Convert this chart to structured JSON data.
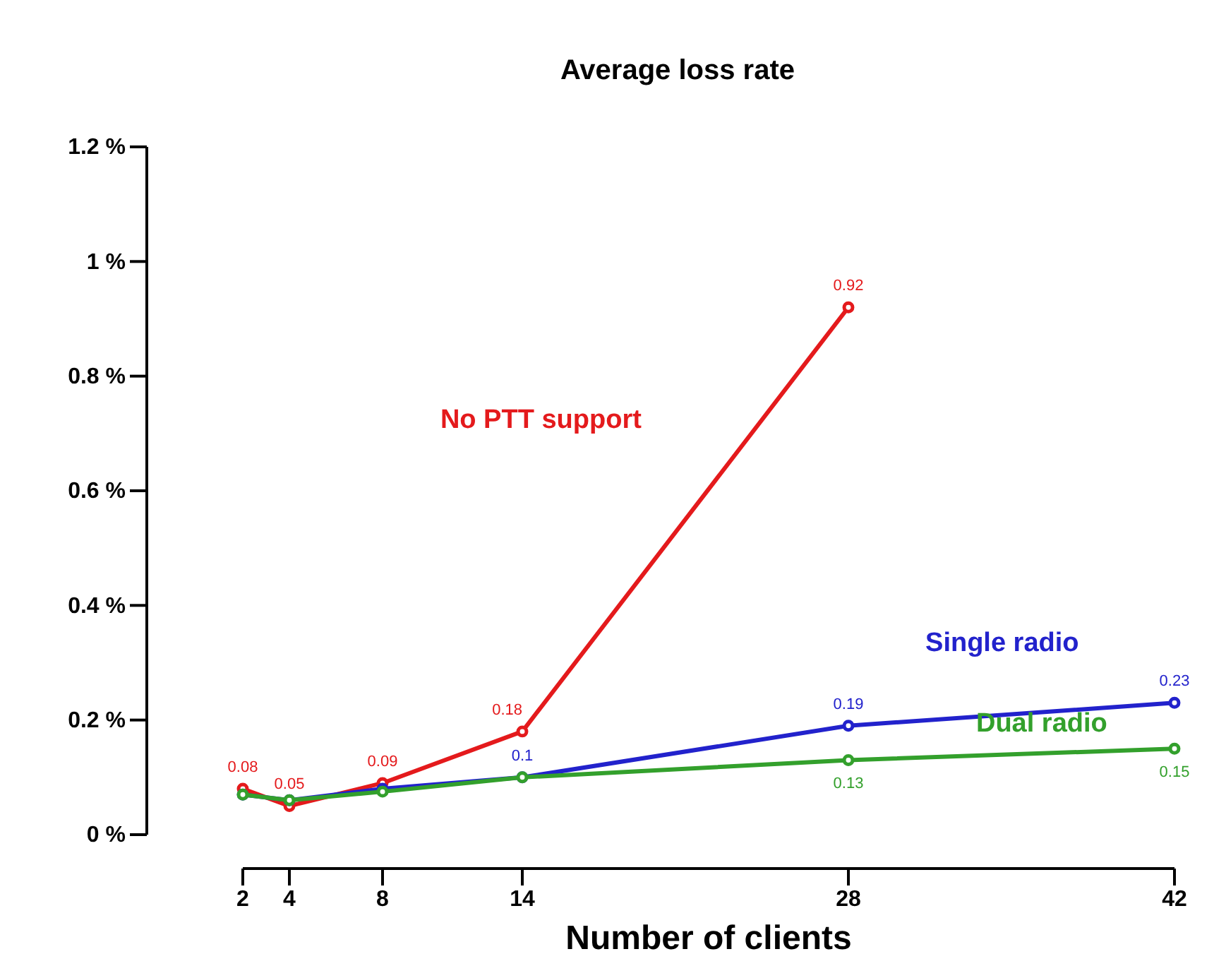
{
  "chart_data": {
    "type": "line",
    "title": "Average loss rate",
    "xlabel": "Number of clients",
    "x": [
      2,
      4,
      8,
      14,
      28,
      42
    ],
    "xlim": [
      2,
      42
    ],
    "xticks": [
      2,
      4,
      8,
      14,
      28,
      42
    ],
    "ylim": [
      0,
      1.2
    ],
    "yticks": [
      {
        "value": 0,
        "label": "0  %"
      },
      {
        "value": 0.2,
        "label": "0.2  %"
      },
      {
        "value": 0.4,
        "label": "0.4  %"
      },
      {
        "value": 0.6,
        "label": "0.6  %"
      },
      {
        "value": 0.8,
        "label": "0.8  %"
      },
      {
        "value": 1,
        "label": "1  %"
      },
      {
        "value": 1.2,
        "label": "1.2  %"
      }
    ],
    "marker": "circle",
    "line_style": "solid",
    "grid": false,
    "legend": false,
    "series": [
      {
        "name": "No PTT support",
        "color": "#e41a1c",
        "values": [
          0.08,
          0.05,
          0.09,
          0.18,
          0.92,
          null
        ],
        "value_labels": [
          "0.08",
          "0.05",
          "0.09",
          "0.18",
          "0.92",
          null
        ]
      },
      {
        "name": "Single radio",
        "color": "#2222cc",
        "values": [
          0.07,
          0.06,
          0.08,
          0.1,
          0.19,
          0.23
        ],
        "value_labels": [
          null,
          null,
          null,
          "0.1",
          "0.19",
          "0.23"
        ]
      },
      {
        "name": "Dual radio",
        "color": "#33a02c",
        "values": [
          0.07,
          0.06,
          0.075,
          0.1,
          0.13,
          0.15
        ],
        "value_labels": [
          null,
          null,
          null,
          null,
          "0.13",
          "0.15"
        ]
      }
    ]
  }
}
